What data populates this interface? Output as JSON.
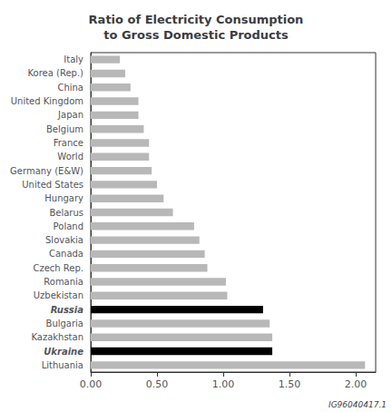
{
  "chart_data": {
    "type": "bar",
    "orientation": "horizontal",
    "title": "Ratio of Electricity Consumption\nto Gross Domestic Products",
    "categories": [
      "Lithuania",
      "Ukraine",
      "Kazakhstan",
      "Bulgaria",
      "Russia",
      "Uzbekistan",
      "Romania",
      "Czech Rep.",
      "Canada",
      "Slovakia",
      "Poland",
      "Belarus",
      "Hungary",
      "United States",
      "Germany (E&W)",
      "World",
      "France",
      "Belgium",
      "Japan",
      "United Kingdom",
      "China",
      "Korea (Rep.)",
      "Italy"
    ],
    "values": [
      2.07,
      1.37,
      1.37,
      1.35,
      1.3,
      1.03,
      1.02,
      0.88,
      0.86,
      0.82,
      0.78,
      0.62,
      0.55,
      0.5,
      0.46,
      0.44,
      0.44,
      0.4,
      0.36,
      0.36,
      0.3,
      0.26,
      0.22
    ],
    "colors": [
      "#b8b8b8",
      "#000000",
      "#b8b8b8",
      "#b8b8b8",
      "#000000",
      "#b8b8b8",
      "#b8b8b8",
      "#b8b8b8",
      "#b8b8b8",
      "#b8b8b8",
      "#b8b8b8",
      "#b8b8b8",
      "#b8b8b8",
      "#b8b8b8",
      "#b8b8b8",
      "#b8b8b8",
      "#b8b8b8",
      "#b8b8b8",
      "#b8b8b8",
      "#b8b8b8",
      "#b8b8b8",
      "#b8b8b8",
      "#b8b8b8"
    ],
    "xlim": [
      0,
      2.15
    ],
    "xticks": [
      {
        "value": 0,
        "label": "0.00"
      },
      {
        "value": 0.5,
        "label": "0.50"
      },
      {
        "value": 1,
        "label": "1.00"
      },
      {
        "value": 1.5,
        "label": "1.50"
      },
      {
        "value": 2,
        "label": "2.00"
      }
    ],
    "grid": false,
    "annotations": [
      "IG96040417.1"
    ]
  }
}
